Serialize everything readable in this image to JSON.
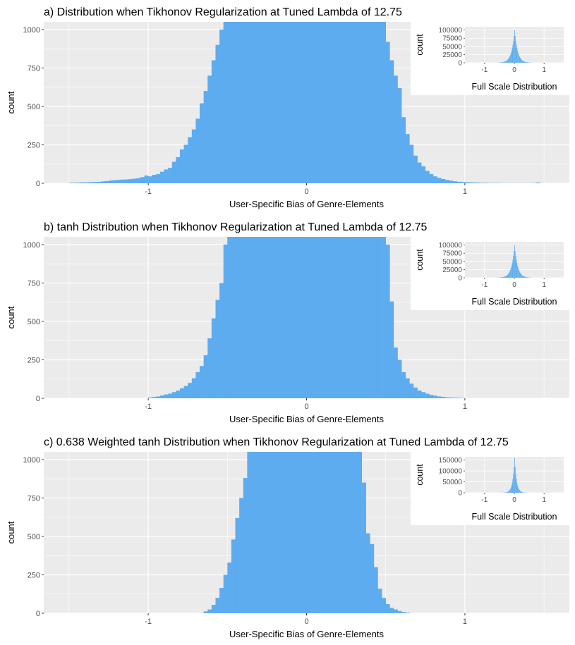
{
  "style": {
    "bar_color": "#5dacef",
    "panel_bg": "#ebebeb",
    "grid_color": "#ffffff"
  },
  "chart_data": [
    {
      "type": "bar",
      "title": "a) Distribution when Tikhonov Regularization at Tuned Lambda of 12.75",
      "xlabel": "User-Specific Bias of Genre-Elements",
      "ylabel": "count",
      "xlim": [
        -1.66,
        1.66
      ],
      "ylim": [
        0,
        1050
      ],
      "xticks": [
        -1,
        0,
        1
      ],
      "xtick_labels": [
        "-1",
        "0",
        "1"
      ],
      "yticks": [
        0,
        250,
        500,
        750,
        1000
      ],
      "ytick_labels": [
        "0",
        "250",
        "500",
        "750",
        "1000"
      ],
      "grid": true,
      "bin_width": 0.025,
      "x": [
        -1.5,
        -1.475,
        -1.45,
        -1.425,
        -1.4,
        -1.375,
        -1.35,
        -1.325,
        -1.3,
        -1.275,
        -1.25,
        -1.225,
        -1.2,
        -1.175,
        -1.15,
        -1.125,
        -1.1,
        -1.075,
        -1.05,
        -1.025,
        -1.0,
        -0.975,
        -0.95,
        -0.925,
        -0.9,
        -0.875,
        -0.85,
        -0.825,
        -0.8,
        -0.775,
        -0.75,
        -0.725,
        -0.7,
        -0.675,
        -0.65,
        -0.625,
        -0.6,
        -0.575,
        -0.55,
        -0.525,
        -0.5,
        -0.475,
        0.45,
        0.475,
        0.5,
        0.525,
        0.55,
        0.575,
        0.6,
        0.625,
        0.65,
        0.675,
        0.7,
        0.725,
        0.75,
        0.775,
        0.8,
        0.825,
        0.85,
        0.875,
        0.9,
        0.925,
        0.95,
        0.975,
        1.0,
        1.025,
        1.05,
        1.075,
        1.1,
        1.125,
        1.15,
        1.175,
        1.2,
        1.225,
        1.25,
        1.275,
        1.3,
        1.325,
        1.35,
        1.375,
        1.4,
        1.425,
        1.45,
        1.475
      ],
      "values": [
        3,
        4,
        5,
        6,
        6,
        7,
        8,
        9,
        12,
        14,
        18,
        20,
        22,
        24,
        25,
        27,
        30,
        33,
        40,
        50,
        45,
        55,
        60,
        75,
        90,
        100,
        140,
        170,
        220,
        250,
        300,
        350,
        420,
        520,
        600,
        700,
        800,
        900,
        1000,
        1050,
        1050,
        1050,
        1050,
        1050,
        920,
        800,
        700,
        620,
        430,
        320,
        250,
        180,
        135,
        110,
        80,
        60,
        45,
        35,
        28,
        22,
        17,
        13,
        10,
        8,
        7,
        6,
        5,
        4,
        3,
        3,
        2,
        2,
        2,
        1,
        1,
        1,
        1,
        1,
        1,
        1,
        1,
        2,
        5,
        1
      ],
      "fill_between": [
        -0.475,
        0.45
      ],
      "inset": {
        "xlabel": "Full Scale Distribution",
        "ylabel": "count",
        "xticks": [
          -1,
          0,
          1
        ],
        "xtick_labels": [
          "-1",
          "0",
          "1"
        ],
        "yticks": [
          0,
          25000,
          50000,
          75000,
          100000
        ],
        "ytick_labels": [
          "0",
          "25000",
          "50000",
          "75000",
          "100000"
        ],
        "xlim": [
          -1.66,
          1.66
        ],
        "ylim": [
          0,
          110000
        ],
        "peak": 100000,
        "sigma": 0.1
      }
    },
    {
      "type": "bar",
      "title": "b) tanh Distribution when Tikhonov Regularization at Tuned Lambda of 12.75",
      "xlabel": "User-Specific Bias of Genre-Elements",
      "ylabel": "count",
      "xlim": [
        -1.66,
        1.66
      ],
      "ylim": [
        0,
        1050
      ],
      "xticks": [
        -1,
        0,
        1
      ],
      "xtick_labels": [
        "-1",
        "0",
        "1"
      ],
      "yticks": [
        0,
        250,
        500,
        750,
        1000
      ],
      "ytick_labels": [
        "0",
        "250",
        "500",
        "750",
        "1000"
      ],
      "grid": true,
      "bin_width": 0.025,
      "x": [
        -1.0,
        -0.975,
        -0.95,
        -0.925,
        -0.9,
        -0.875,
        -0.85,
        -0.825,
        -0.8,
        -0.775,
        -0.75,
        -0.725,
        -0.7,
        -0.675,
        -0.65,
        -0.625,
        -0.6,
        -0.575,
        -0.55,
        -0.525,
        -0.5,
        0.475,
        0.5,
        0.525,
        0.55,
        0.575,
        0.6,
        0.625,
        0.65,
        0.675,
        0.7,
        0.725,
        0.75,
        0.775,
        0.8,
        0.825,
        0.85,
        0.875,
        0.9,
        0.925,
        0.95,
        0.975
      ],
      "values": [
        5,
        8,
        12,
        18,
        25,
        30,
        40,
        50,
        65,
        80,
        100,
        130,
        170,
        210,
        280,
        390,
        520,
        640,
        750,
        1000,
        1050,
        1050,
        1000,
        630,
        330,
        250,
        170,
        130,
        95,
        70,
        50,
        40,
        30,
        22,
        17,
        12,
        9,
        6,
        5,
        4,
        3,
        2
      ],
      "fill_between": [
        -0.5,
        0.475
      ],
      "inset": {
        "xlabel": "Full Scale Distribution",
        "ylabel": "count",
        "xticks": [
          -1,
          0,
          1
        ],
        "xtick_labels": [
          "-1",
          "0",
          "1"
        ],
        "yticks": [
          0,
          25000,
          50000,
          75000,
          100000
        ],
        "ytick_labels": [
          "0",
          "25000",
          "50000",
          "75000",
          "100000"
        ],
        "xlim": [
          -1.66,
          1.66
        ],
        "ylim": [
          0,
          110000
        ],
        "peak": 100000,
        "sigma": 0.1
      }
    },
    {
      "type": "bar",
      "title": "c) 0.638 Weighted tanh Distribution when Tikhonov Regularization at Tuned Lambda of 12.75",
      "xlabel": "User-Specific Bias of Genre-Elements",
      "ylabel": "count",
      "xlim": [
        -1.66,
        1.66
      ],
      "ylim": [
        0,
        1050
      ],
      "xticks": [
        -1,
        0,
        1
      ],
      "xtick_labels": [
        "-1",
        "0",
        "1"
      ],
      "yticks": [
        0,
        250,
        500,
        750,
        1000
      ],
      "ytick_labels": [
        "0",
        "250",
        "500",
        "750",
        "1000"
      ],
      "grid": true,
      "bin_width": 0.025,
      "x": [
        -0.65,
        -0.625,
        -0.6,
        -0.575,
        -0.55,
        -0.525,
        -0.5,
        -0.475,
        -0.45,
        -0.425,
        -0.4,
        -0.375,
        -0.35,
        0.35,
        0.375,
        0.4,
        0.425,
        0.45,
        0.475,
        0.5,
        0.525,
        0.55,
        0.575,
        0.6,
        0.625
      ],
      "values": [
        12,
        25,
        55,
        100,
        165,
        250,
        330,
        480,
        620,
        750,
        880,
        1050,
        1050,
        850,
        520,
        450,
        300,
        160,
        100,
        60,
        35,
        25,
        15,
        8,
        4
      ],
      "fill_between": [
        -0.35,
        0.35
      ],
      "inset": {
        "xlabel": "Full Scale Distribution",
        "ylabel": "count",
        "xticks": [
          -1,
          0,
          1
        ],
        "xtick_labels": [
          "-1",
          "0",
          "1"
        ],
        "yticks": [
          0,
          50000,
          100000,
          150000
        ],
        "ytick_labels": [
          "0",
          "50000",
          "100000",
          "150000"
        ],
        "xlim": [
          -1.66,
          1.66
        ],
        "ylim": [
          0,
          165000
        ],
        "peak": 160000,
        "sigma": 0.065
      }
    }
  ]
}
